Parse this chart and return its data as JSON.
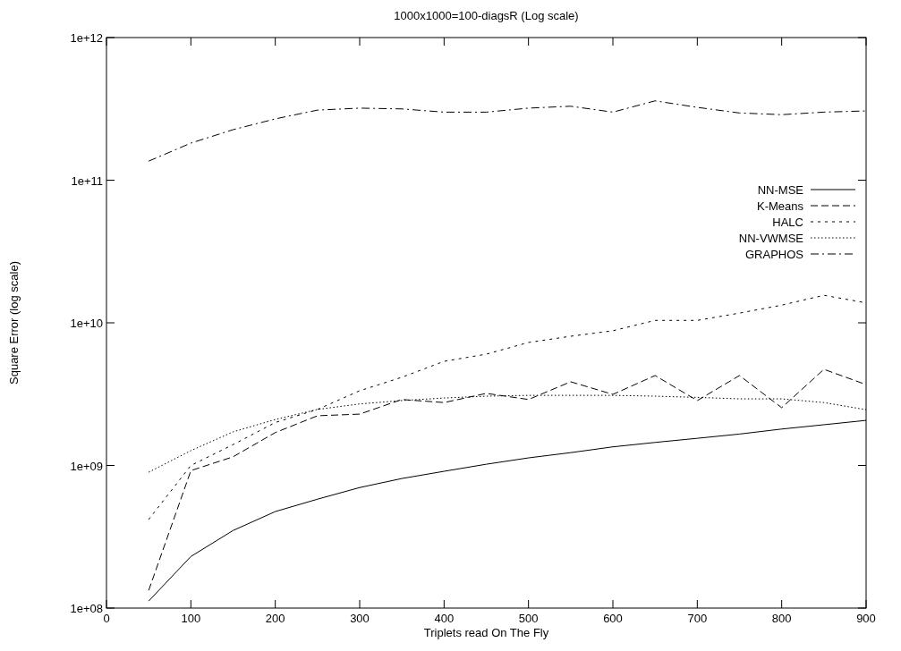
{
  "chart_data": {
    "type": "line",
    "title": "1000x1000=100-diagsR (Log scale)",
    "xlabel": "Triplets read On The Fly",
    "ylabel": "Square Error (log scale)",
    "x": [
      50,
      100,
      150,
      200,
      250,
      300,
      350,
      400,
      450,
      500,
      550,
      600,
      650,
      700,
      750,
      800,
      850,
      900
    ],
    "series": [
      {
        "name": "NN-MSE",
        "color": "#000000",
        "line_style": "solid",
        "values": [
          112000000.0,
          230000000.0,
          350000000.0,
          475000000.0,
          580000000.0,
          700000000.0,
          810000000.0,
          910000000.0,
          1020000000.0,
          1130000000.0,
          1230000000.0,
          1350000000.0,
          1450000000.0,
          1550000000.0,
          1660000000.0,
          1800000000.0,
          1930000000.0,
          2070000000.0
        ]
      },
      {
        "name": "K-Means",
        "color": "#000000",
        "line_style": "dashed",
        "values": [
          133000000.0,
          920000000.0,
          1150000000.0,
          1700000000.0,
          2230000000.0,
          2290000000.0,
          2900000000.0,
          2760000000.0,
          3200000000.0,
          2900000000.0,
          3860000000.0,
          3150000000.0,
          4270000000.0,
          2850000000.0,
          4270000000.0,
          2540000000.0,
          4720000000.0,
          3690000000.0
        ]
      },
      {
        "name": "HALC",
        "color": "#000000",
        "line_style": "dashed",
        "values": [
          418000000.0,
          1000000000.0,
          1400000000.0,
          2000000000.0,
          2470000000.0,
          3340000000.0,
          4150000000.0,
          5370000000.0,
          6030000000.0,
          7280000000.0,
          8050000000.0,
          8800000000.0,
          10400000000.0,
          10400000000.0,
          11700000000.0,
          13300000000.0,
          15600000000.0,
          13800000000.0
        ]
      },
      {
        "name": "NN-VWMSE",
        "color": "#000000",
        "line_style": "dotted",
        "values": [
          897000000.0,
          1270000000.0,
          1720000000.0,
          2100000000.0,
          2470000000.0,
          2700000000.0,
          2850000000.0,
          2970000000.0,
          3060000000.0,
          3100000000.0,
          3100000000.0,
          3100000000.0,
          3060000000.0,
          3000000000.0,
          2930000000.0,
          2930000000.0,
          2760000000.0,
          2460000000.0
        ]
      },
      {
        "name": "GRAPHOS",
        "color": "#000000",
        "line_style": "dashdot",
        "values": [
          136000000000.0,
          182000000000.0,
          226000000000.0,
          269000000000.0,
          310000000000.0,
          320000000000.0,
          316000000000.0,
          300000000000.0,
          300000000000.0,
          320000000000.0,
          330000000000.0,
          300000000000.0,
          360000000000.0,
          324000000000.0,
          296000000000.0,
          288000000000.0,
          300000000000.0,
          306000000000.0
        ]
      }
    ],
    "xlim": [
      0,
      900
    ],
    "xticks": [
      0,
      100,
      200,
      300,
      400,
      500,
      600,
      700,
      800,
      900
    ],
    "ylim": [
      100000000.0,
      1000000000000.0
    ],
    "yticks": [
      {
        "value": 100000000.0,
        "label": "1e+08"
      },
      {
        "value": 1000000000.0,
        "label": "1e+09"
      },
      {
        "value": 10000000000.0,
        "label": "1e+10"
      },
      {
        "value": 100000000000.0,
        "label": "1e+11"
      },
      {
        "value": 1000000000000.0,
        "label": "1e+12"
      }
    ],
    "log": "y",
    "grid": false,
    "legend": "top right",
    "marker": "none"
  }
}
